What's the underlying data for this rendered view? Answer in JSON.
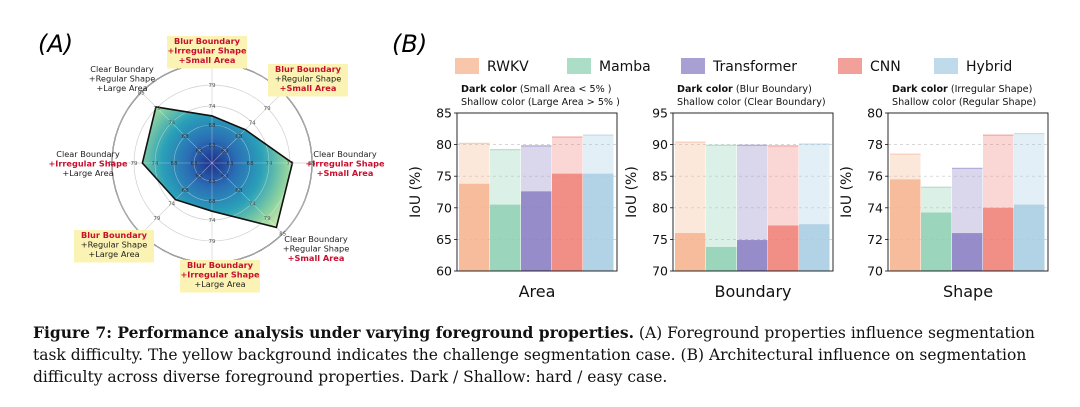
{
  "panels": {
    "a": "(A)",
    "b": "(B)"
  },
  "radar": {
    "ticks": [
      "85",
      "79",
      "74",
      "68",
      "63"
    ],
    "labels": [
      {
        "lines": [
          "Blur Boundary",
          "+Irregular Shape",
          "+Small Area"
        ],
        "reds": [
          true,
          true,
          true
        ],
        "highlight": true
      },
      {
        "lines": [
          "Blur Boundary",
          "+Regular Shape",
          "+Small Area"
        ],
        "reds": [
          true,
          false,
          true
        ],
        "highlight": true
      },
      {
        "lines": [
          "Clear Boundary",
          "+Irregular Shape",
          "+Small Area"
        ],
        "reds": [
          false,
          true,
          true
        ],
        "highlight": false
      },
      {
        "lines": [
          "Clear Boundary",
          "+Regular Shape",
          "+Small Area"
        ],
        "reds": [
          false,
          false,
          true
        ],
        "highlight": false
      },
      {
        "lines": [
          "Blur Boundary",
          "+Irregular Shape",
          "+Large Area"
        ],
        "reds": [
          true,
          true,
          false
        ],
        "highlight": true
      },
      {
        "lines": [
          "Blur Boundary",
          "+Regular Shape",
          "+Large Area"
        ],
        "reds": [
          true,
          false,
          false
        ],
        "highlight": true
      },
      {
        "lines": [
          "Clear Boundary",
          "+Irregular Shape",
          "+Large Area"
        ],
        "reds": [
          false,
          true,
          false
        ],
        "highlight": false
      },
      {
        "lines": [
          "Clear Boundary",
          "+Regular Shape",
          "+Large Area"
        ],
        "reds": [
          false,
          false,
          false
        ],
        "highlight": false
      }
    ]
  },
  "chart_data": {
    "type": "bar",
    "legend": [
      {
        "name": "RWKV",
        "color": "#f6b48f"
      },
      {
        "name": "Mamba",
        "color": "#8fd1b4"
      },
      {
        "name": "Transformer",
        "color": "#8b7fc4"
      },
      {
        "name": "CNN",
        "color": "#ee8178"
      },
      {
        "name": "Hybrid",
        "color": "#a9cde3"
      }
    ],
    "legend_placement": "top",
    "radar": {
      "type": "radar",
      "ylim": [
        57,
        85
      ],
      "values": [
        70.2,
        70.2,
        79.5,
        82.5,
        70.5,
        71.5,
        76.5,
        79.2
      ]
    },
    "subplots": [
      {
        "xlabel": "Area",
        "ylabel": "IoU (%)",
        "ylim": [
          60,
          85
        ],
        "yticks": [
          "60",
          "65",
          "70",
          "75",
          "80",
          "85"
        ],
        "note_bold": "Dark color",
        "note1": " (Small Area < 5% )",
        "note2": "Shallow color (Large Area > 5% )",
        "hard": [
          73.8,
          70.5,
          72.6,
          75.4,
          75.4
        ],
        "easy": [
          80.2,
          79.2,
          79.8,
          81.2,
          81.5
        ]
      },
      {
        "xlabel": "Boundary",
        "ylabel": "IoU (%)",
        "ylim": [
          70,
          95
        ],
        "yticks": [
          "70",
          "75",
          "80",
          "85",
          "90",
          "95"
        ],
        "note_bold": "Dark color",
        "note1": " (Blur Boundary)",
        "note2": "Shallow color (Clear Boundary)",
        "hard": [
          76.0,
          73.8,
          74.9,
          77.2,
          77.4
        ],
        "easy": [
          90.4,
          89.9,
          89.9,
          89.8,
          90.1
        ]
      },
      {
        "xlabel": "Shape",
        "ylabel": "IoU (%)",
        "ylim": [
          70,
          80
        ],
        "yticks": [
          "70",
          "72",
          "74",
          "76",
          "78",
          "80"
        ],
        "note_bold": "Dark color",
        "note1": " (Irregular Shape)",
        "note2": "Shallow color (Regular Shape)",
        "hard": [
          75.8,
          73.7,
          72.4,
          74.0,
          74.2
        ],
        "easy": [
          77.4,
          75.3,
          76.5,
          78.6,
          78.7
        ]
      }
    ]
  },
  "caption": {
    "bold": "Figure 7: Performance analysis under varying foreground properties.",
    "text": " (A) Foreground properties influence segmentation task difficulty. The yellow background indicates the challenge segmentation case. (B) Architectural influence on segmentation difficulty across diverse foreground properties. Dark / Shallow: hard / easy case."
  }
}
